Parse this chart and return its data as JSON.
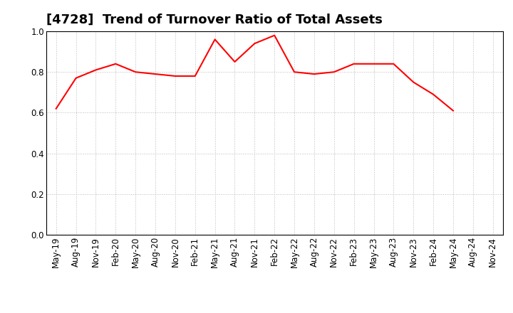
{
  "title": "[4728]  Trend of Turnover Ratio of Total Assets",
  "x_labels": [
    "May-19",
    "Aug-19",
    "Nov-19",
    "Feb-20",
    "May-20",
    "Aug-20",
    "Nov-20",
    "Feb-21",
    "May-21",
    "Aug-21",
    "Nov-21",
    "Feb-22",
    "May-22",
    "Aug-22",
    "Nov-22",
    "Feb-23",
    "May-23",
    "Aug-23",
    "Nov-23",
    "Feb-24",
    "May-24",
    "Aug-24",
    "Nov-24"
  ],
  "y_values": [
    0.62,
    0.77,
    0.81,
    0.84,
    0.8,
    0.79,
    0.78,
    0.78,
    0.96,
    0.85,
    0.94,
    0.98,
    0.8,
    0.79,
    0.8,
    0.84,
    0.84,
    0.84,
    0.75,
    0.69,
    0.61,
    null,
    null
  ],
  "line_color": "#FF0000",
  "line_width": 1.5,
  "ylim": [
    0.0,
    1.0
  ],
  "yticks": [
    0.0,
    0.2,
    0.4,
    0.6,
    0.8,
    1.0
  ],
  "background_color": "#ffffff",
  "grid_color": "#bbbbbb",
  "title_fontsize": 13,
  "tick_fontsize": 8.5
}
